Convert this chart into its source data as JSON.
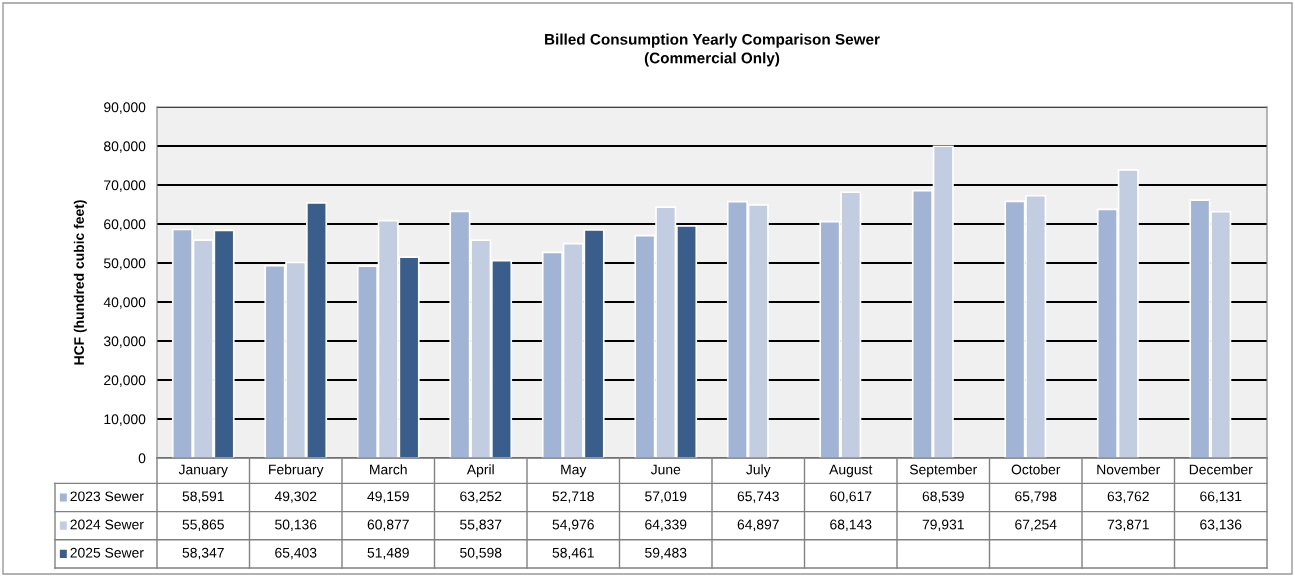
{
  "chart_data": {
    "type": "bar",
    "title": "Billed Consumption Yearly Comparison Sewer\n(Commercial Only)",
    "ylabel": "HCF (hundred cubic feet)",
    "categories": [
      "January",
      "February",
      "March",
      "April",
      "May",
      "June",
      "July",
      "August",
      "September",
      "October",
      "November",
      "December"
    ],
    "series": [
      {
        "name": "2023 Sewer",
        "color": "#a2b4d5",
        "values": [
          58591,
          49302,
          49159,
          63252,
          52718,
          57019,
          65743,
          60617,
          68539,
          65798,
          63762,
          66131
        ],
        "value_labels": [
          "58,591",
          "49,302",
          "49,159",
          "63,252",
          "52,718",
          "57,019",
          "65,743",
          "60,617",
          "68,539",
          "65,798",
          "63,762",
          "66,131"
        ]
      },
      {
        "name": "2024 Sewer",
        "color": "#c3cde2",
        "values": [
          55865,
          50136,
          60877,
          55837,
          54976,
          64339,
          64897,
          68143,
          79931,
          67254,
          73871,
          63136
        ],
        "value_labels": [
          "55,865",
          "50,136",
          "60,877",
          "55,837",
          "54,976",
          "64,339",
          "64,897",
          "68,143",
          "79,931",
          "67,254",
          "73,871",
          "63,136"
        ]
      },
      {
        "name": "2025 Sewer",
        "color": "#3a5e8c",
        "values": [
          58347,
          65403,
          51489,
          50598,
          58461,
          59483,
          null,
          null,
          null,
          null,
          null,
          null
        ],
        "value_labels": [
          "58,347",
          "65,403",
          "51,489",
          "50,598",
          "58,461",
          "59,483",
          null,
          null,
          null,
          null,
          null,
          null
        ]
      }
    ],
    "ylim": [
      0,
      90000
    ],
    "yticks": [
      {
        "value": 0,
        "label": "0"
      },
      {
        "value": 10000,
        "label": "10,000"
      },
      {
        "value": 20000,
        "label": "20,000"
      },
      {
        "value": 30000,
        "label": "30,000"
      },
      {
        "value": 40000,
        "label": "40,000"
      },
      {
        "value": 50000,
        "label": "50,000"
      },
      {
        "value": 60000,
        "label": "60,000"
      },
      {
        "value": 70000,
        "label": "70,000"
      },
      {
        "value": 80000,
        "label": "80,000"
      },
      {
        "value": 90000,
        "label": "90,000"
      }
    ],
    "grid": "y",
    "legend": "bottom left"
  }
}
